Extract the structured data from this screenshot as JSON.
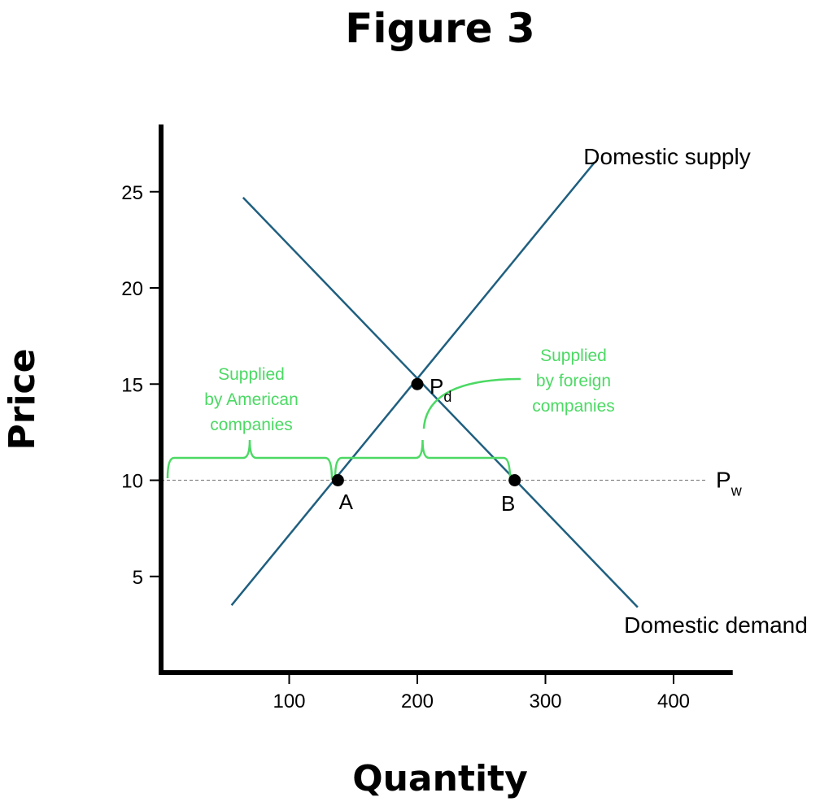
{
  "chart_data": {
    "type": "line",
    "title": "Figure 3",
    "xlabel": "Quantity",
    "ylabel": "Price",
    "xlim": [
      0,
      450
    ],
    "ylim": [
      0,
      29
    ],
    "x_ticks": [
      100,
      200,
      300,
      400
    ],
    "y_ticks": [
      5,
      10,
      15,
      20,
      25
    ],
    "grid": false,
    "series": [
      {
        "name": "Domestic supply",
        "x": [
          55,
          338
        ],
        "y": [
          3.5,
          26.5
        ]
      },
      {
        "name": "Domestic demand",
        "x": [
          64,
          372
        ],
        "y": [
          24.7,
          3.4
        ]
      }
    ],
    "world_price": {
      "label": "P",
      "subscript": "w",
      "y": 10
    },
    "points": [
      {
        "label": "P",
        "subscript": "d",
        "x": 200,
        "y": 15
      },
      {
        "label": "A",
        "x": 138,
        "y": 10
      },
      {
        "label": "B",
        "x": 276,
        "y": 10
      }
    ],
    "annotations": [
      {
        "lines": [
          "Supplied",
          "by American",
          "companies"
        ],
        "from_x": 0,
        "to_x": 138
      },
      {
        "lines": [
          "Supplied",
          "by foreign",
          "companies"
        ],
        "from_x": 138,
        "to_x": 276
      }
    ],
    "colors": {
      "curves": "#1f5f7f",
      "axes": "#000000",
      "annotation": "#4cd964",
      "world_price_line": "#888888",
      "points": "#000000"
    }
  }
}
